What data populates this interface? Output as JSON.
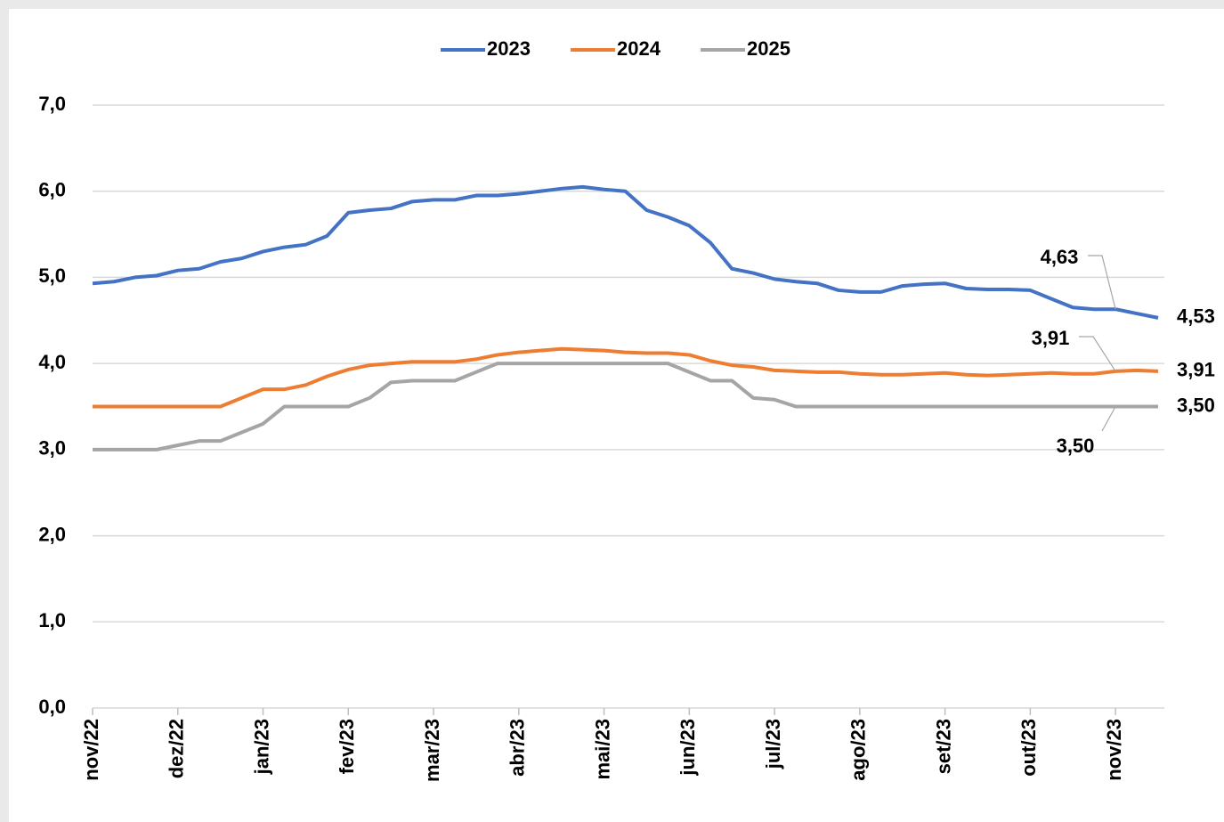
{
  "chart_data": {
    "type": "line",
    "categories": [
      "nov/22",
      null,
      null,
      null,
      "dez/22",
      null,
      null,
      null,
      "jan/23",
      null,
      null,
      null,
      "fev/23",
      null,
      null,
      null,
      "mar/23",
      null,
      null,
      null,
      "abr/23",
      null,
      null,
      null,
      "mai/23",
      null,
      null,
      null,
      "jun/23",
      null,
      null,
      null,
      "jul/23",
      null,
      null,
      null,
      "ago/23",
      null,
      null,
      null,
      "set/23",
      null,
      null,
      null,
      "out/23",
      null,
      null,
      null,
      "nov/23",
      null,
      null
    ],
    "series": [
      {
        "name": "2023",
        "color": "#4472c4",
        "values": [
          4.93,
          4.95,
          5.0,
          5.02,
          5.08,
          5.1,
          5.18,
          5.22,
          5.3,
          5.35,
          5.38,
          5.48,
          5.75,
          5.78,
          5.8,
          5.88,
          5.9,
          5.9,
          5.95,
          5.95,
          5.97,
          6.0,
          6.03,
          6.05,
          6.02,
          6.0,
          5.78,
          5.7,
          5.6,
          5.4,
          5.1,
          5.05,
          4.98,
          4.95,
          4.93,
          4.85,
          4.83,
          4.83,
          4.9,
          4.92,
          4.93,
          4.87,
          4.86,
          4.86,
          4.85,
          4.75,
          4.65,
          4.63,
          4.63,
          4.58,
          4.53
        ],
        "value_labels": [
          null,
          null,
          null,
          null,
          null,
          null,
          null,
          null,
          null,
          null,
          null,
          null,
          null,
          null,
          null,
          null,
          null,
          null,
          null,
          null,
          null,
          null,
          null,
          null,
          null,
          null,
          null,
          null,
          null,
          null,
          null,
          null,
          null,
          null,
          null,
          null,
          null,
          null,
          null,
          null,
          null,
          null,
          null,
          null,
          null,
          null,
          null,
          null,
          "4,63",
          null,
          "4,53"
        ]
      },
      {
        "name": "2024",
        "color": "#ed7d31",
        "values": [
          3.5,
          3.5,
          3.5,
          3.5,
          3.5,
          3.5,
          3.5,
          3.6,
          3.7,
          3.7,
          3.75,
          3.85,
          3.93,
          3.98,
          4.0,
          4.02,
          4.02,
          4.02,
          4.05,
          4.1,
          4.13,
          4.15,
          4.17,
          4.16,
          4.15,
          4.13,
          4.12,
          4.12,
          4.1,
          4.03,
          3.98,
          3.96,
          3.92,
          3.91,
          3.9,
          3.9,
          3.88,
          3.87,
          3.87,
          3.88,
          3.89,
          3.87,
          3.86,
          3.87,
          3.88,
          3.89,
          3.88,
          3.88,
          3.91,
          3.92,
          3.91
        ],
        "value_labels": [
          null,
          null,
          null,
          null,
          null,
          null,
          null,
          null,
          null,
          null,
          null,
          null,
          null,
          null,
          null,
          null,
          null,
          null,
          null,
          null,
          null,
          null,
          null,
          null,
          null,
          null,
          null,
          null,
          null,
          null,
          null,
          null,
          null,
          null,
          null,
          null,
          null,
          null,
          null,
          null,
          null,
          null,
          null,
          null,
          null,
          null,
          null,
          null,
          "3,91",
          null,
          "3,91"
        ]
      },
      {
        "name": "2025",
        "color": "#a5a5a5",
        "values": [
          3.0,
          3.0,
          3.0,
          3.0,
          3.05,
          3.1,
          3.1,
          3.2,
          3.3,
          3.5,
          3.5,
          3.5,
          3.5,
          3.6,
          3.78,
          3.8,
          3.8,
          3.8,
          3.9,
          4.0,
          4.0,
          4.0,
          4.0,
          4.0,
          4.0,
          4.0,
          4.0,
          4.0,
          3.9,
          3.8,
          3.8,
          3.6,
          3.58,
          3.5,
          3.5,
          3.5,
          3.5,
          3.5,
          3.5,
          3.5,
          3.5,
          3.5,
          3.5,
          3.5,
          3.5,
          3.5,
          3.5,
          3.5,
          3.5,
          3.5,
          3.5
        ],
        "value_labels": [
          null,
          null,
          null,
          null,
          null,
          null,
          null,
          null,
          null,
          null,
          null,
          null,
          null,
          null,
          null,
          null,
          null,
          null,
          null,
          null,
          null,
          null,
          null,
          null,
          null,
          null,
          null,
          null,
          null,
          null,
          null,
          null,
          null,
          null,
          null,
          null,
          null,
          null,
          null,
          null,
          null,
          null,
          null,
          null,
          null,
          null,
          null,
          null,
          "3,50",
          null,
          "3,50"
        ]
      }
    ],
    "ylim": [
      0,
      7
    ],
    "yticks": [
      {
        "value": 0,
        "label": "0,0"
      },
      {
        "value": 1,
        "label": "1,0"
      },
      {
        "value": 2,
        "label": "2,0"
      },
      {
        "value": 3,
        "label": "3,0"
      },
      {
        "value": 4,
        "label": "4,0"
      },
      {
        "value": 5,
        "label": "5,0"
      },
      {
        "value": 6,
        "label": "6,0"
      },
      {
        "value": 7,
        "label": "7,0"
      }
    ],
    "grid": true,
    "legend": "top"
  }
}
